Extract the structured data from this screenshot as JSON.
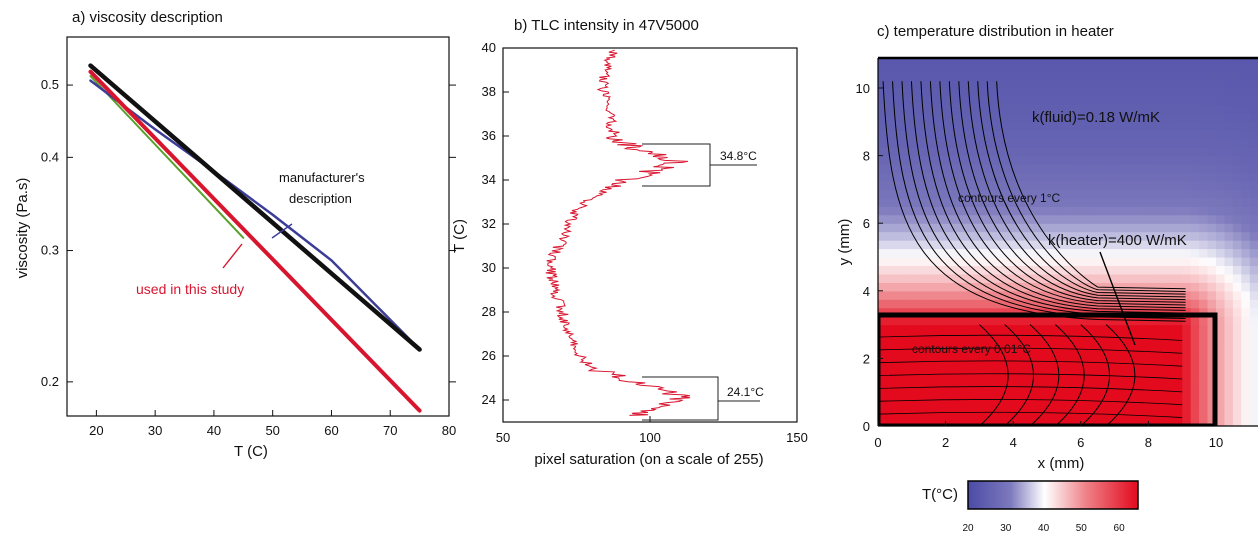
{
  "charts": [
    {
      "panel_title": "a) viscosity description",
      "x_label": "T (C)",
      "y_label": "viscosity (Pa.s)",
      "x_ticks": [
        "20",
        "30",
        "40",
        "50",
        "60",
        "70",
        "80"
      ],
      "y_ticks": [
        "0.2",
        "0.3",
        "0.4",
        "0.5"
      ],
      "annotation_manufacturer": "manufacturer's",
      "annotation_manufacturer_2": "description",
      "annotation_used": "used in this study"
    },
    {
      "panel_title": "b) TLC intensity in 47V5000",
      "x_label": "pixel saturation (on a scale of 255)",
      "y_label": "T (C)",
      "x_ticks": [
        "50",
        "100",
        "150"
      ],
      "y_ticks": [
        "24",
        "26",
        "28",
        "30",
        "32",
        "34",
        "36",
        "38",
        "40"
      ],
      "peak_high_label": "34.8°C",
      "peak_low_label": "24.1°C"
    },
    {
      "panel_title": "c) temperature distribution in heater",
      "x_label": "x (mm)",
      "y_label": "y (mm)",
      "x_ticks": [
        "0",
        "2",
        "4",
        "6",
        "8",
        "10"
      ],
      "y_ticks": [
        "0",
        "2",
        "4",
        "6",
        "8",
        "10"
      ],
      "label_fluid": "k(fluid)=0.18 W/mK",
      "label_heater": "k(heater)=400 W/mK",
      "label_contours_fluid": "contours every 1°C",
      "label_contours_heater": "contours every 0.01°C",
      "colorbar_label": "T(°C)",
      "colorbar_ticks": [
        "20",
        "30",
        "40",
        "50",
        "60"
      ]
    }
  ],
  "chart_data": [
    {
      "type": "line",
      "title": "a) viscosity description",
      "xlabel": "T (C)",
      "ylabel": "viscosity (Pa.s)",
      "xlim": [
        15,
        80
      ],
      "ylim": [
        0.18,
        0.58
      ],
      "yscale": "log",
      "series": [
        {
          "color": "#111111",
          "x": [
            19,
            75
          ],
          "y": [
            0.531,
            0.221
          ]
        },
        {
          "color": "#3c3d96",
          "x": [
            19,
            30,
            40,
            50,
            60,
            75
          ],
          "y": [
            0.507,
            0.436,
            0.383,
            0.335,
            0.291,
            0.221
          ]
        },
        {
          "color": "#d8152f",
          "x": [
            19,
            75
          ],
          "y": [
            0.521,
            0.183
          ]
        },
        {
          "color": "#5aa02c",
          "x": [
            19,
            45
          ],
          "y": [
            0.514,
            0.312
          ]
        }
      ]
    },
    {
      "type": "line",
      "title": "b) TLC intensity in 47V5000",
      "xlabel": "pixel saturation (on a scale of 255)",
      "ylabel": "T (C)",
      "xlim": [
        50,
        150
      ],
      "ylim": [
        23,
        40
      ],
      "series": [
        {
          "color": "#d8152f",
          "T": [
            23.3,
            23.6,
            24.1,
            24.5,
            25.0,
            25.5,
            26.0,
            26.5,
            27.0,
            27.5,
            28.0,
            28.5,
            29.0,
            29.5,
            30.0,
            30.5,
            31.0,
            31.5,
            32.0,
            32.5,
            33.0,
            33.5,
            34.0,
            34.5,
            34.8,
            35.2,
            35.6,
            36.0,
            36.5,
            37.0,
            37.5,
            38.0,
            38.5,
            39.0,
            39.5,
            39.9
          ],
          "saturation": [
            95,
            100,
            112,
            102,
            90,
            80,
            76,
            74,
            72,
            71,
            70,
            69,
            68,
            67,
            66,
            67,
            69,
            71,
            72,
            74,
            78,
            85,
            92,
            103,
            110,
            100,
            92,
            88,
            87,
            86,
            85,
            84,
            84,
            85,
            86,
            88
          ]
        }
      ]
    },
    {
      "type": "heatmap",
      "title": "c) temperature distribution in heater",
      "xlabel": "x (mm)",
      "ylabel": "y (mm)",
      "xlim": [
        0,
        10
      ],
      "ylim": [
        0,
        10
      ],
      "colorbar_range": [
        20,
        65
      ],
      "colorbar_ticks": [
        20,
        30,
        40,
        50,
        60
      ],
      "heater_region": {
        "x": [
          0,
          9
        ],
        "y": [
          0,
          3
        ]
      }
    }
  ]
}
